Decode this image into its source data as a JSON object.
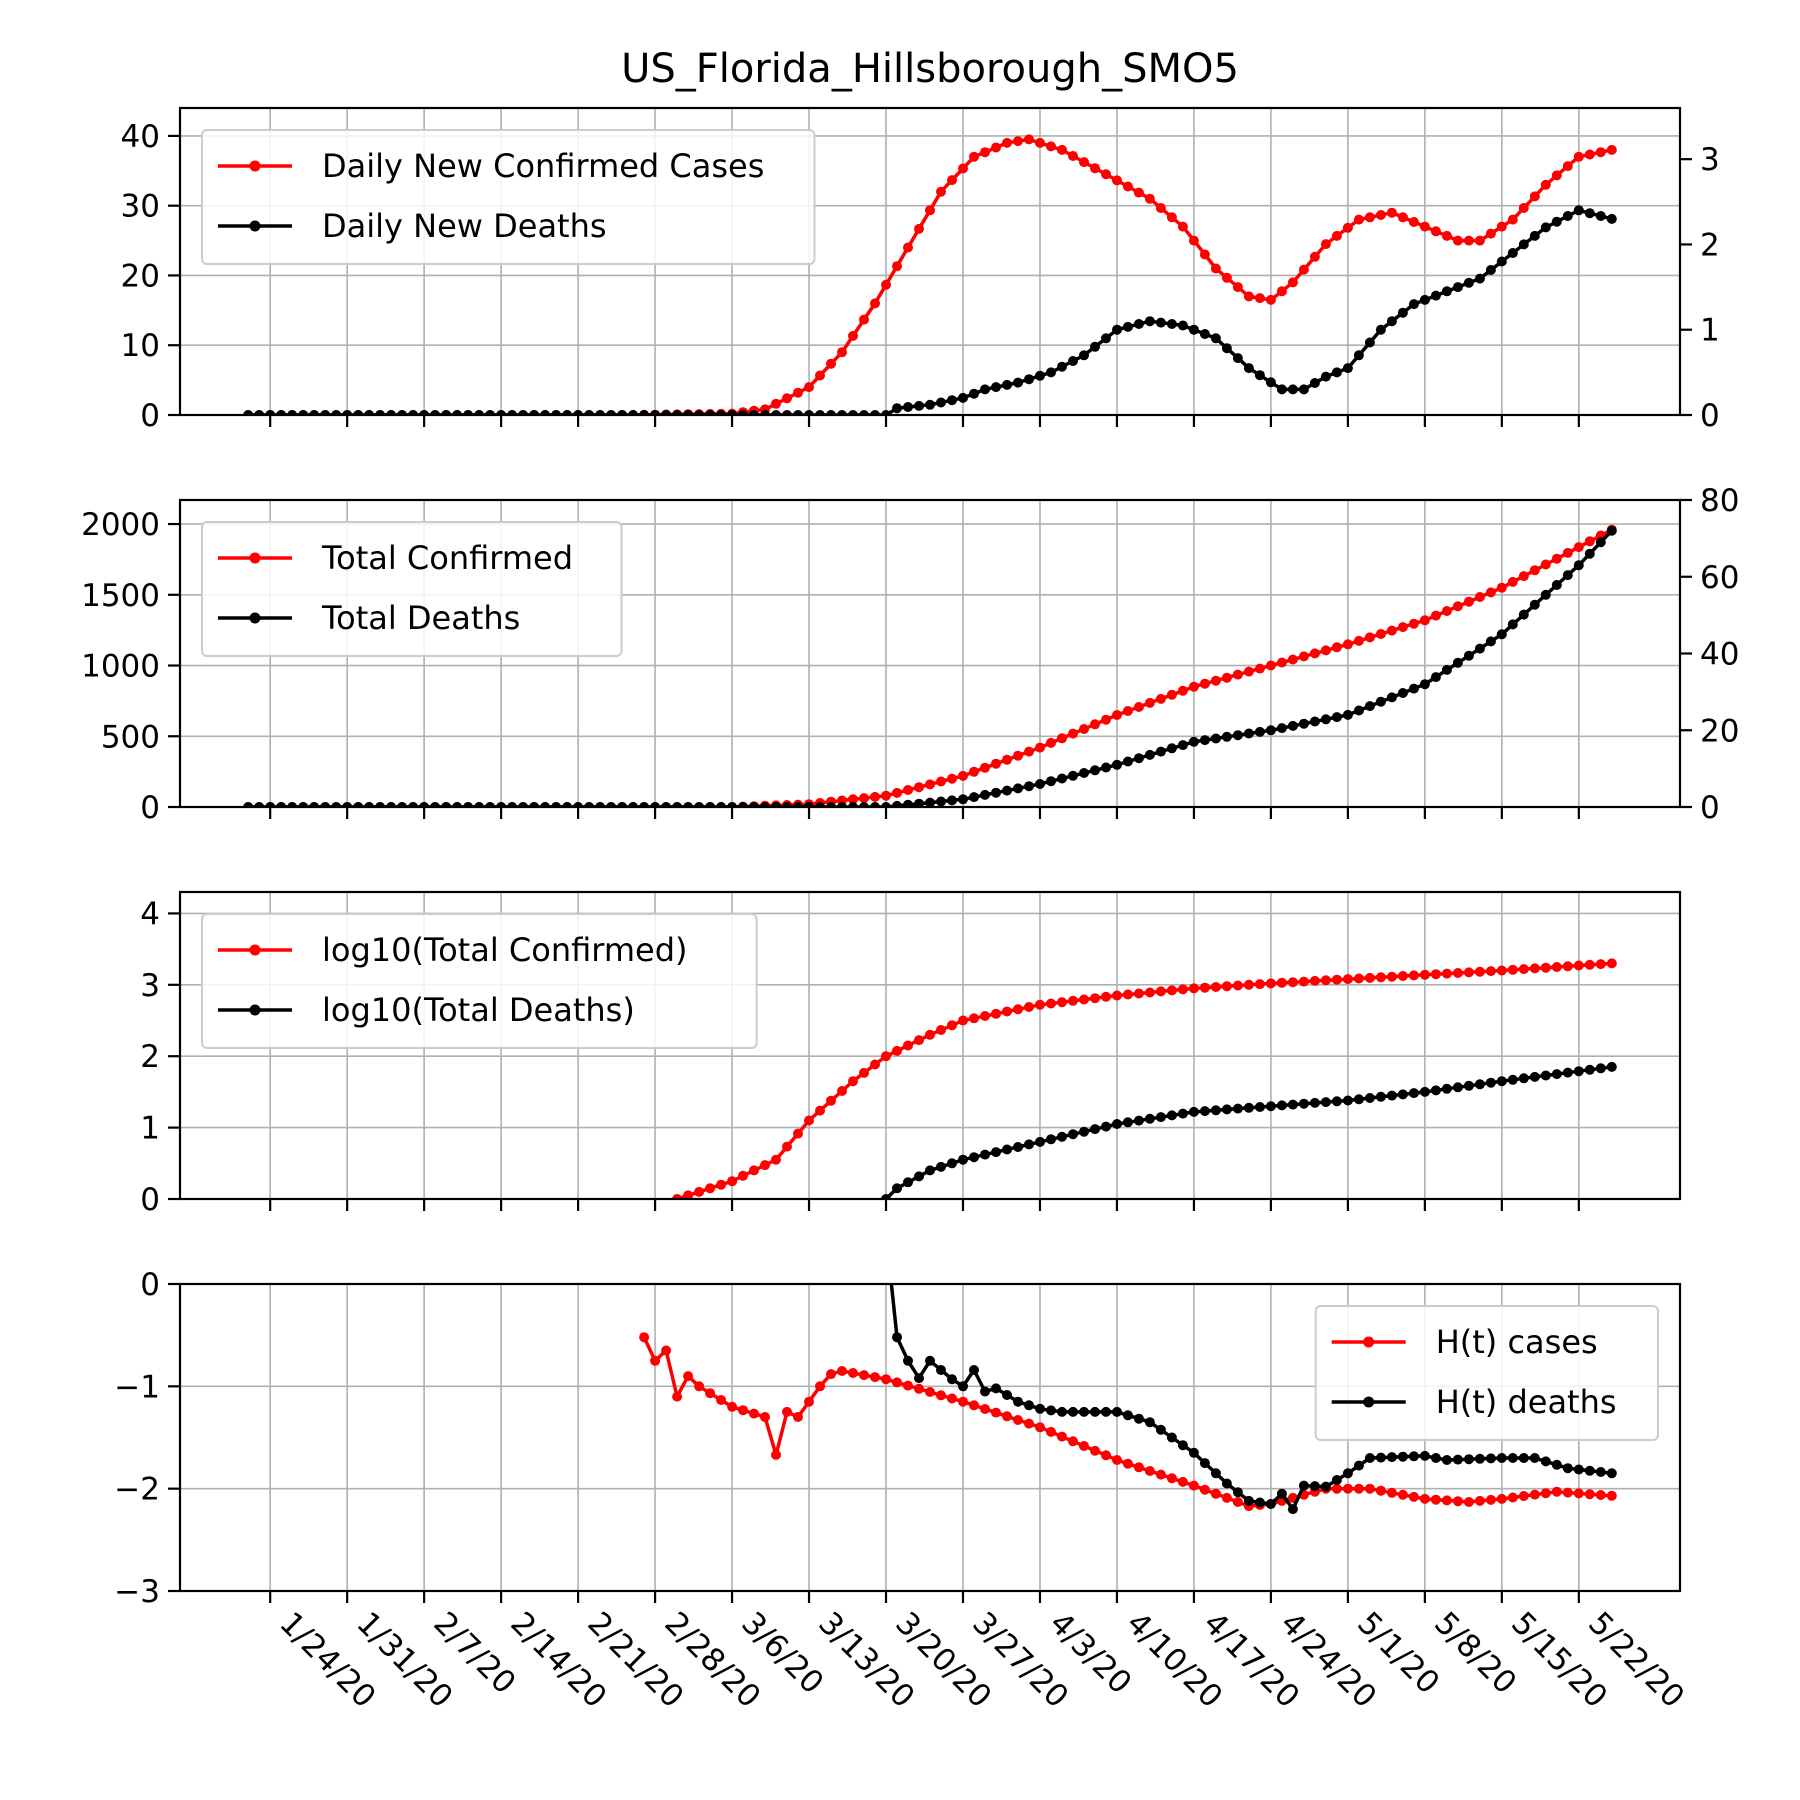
{
  "figure": {
    "title": "US_Florida_Hillsborough_SMO5"
  },
  "chart_data": [
    {
      "type": "line",
      "panel": "daily",
      "x_dates": [
        "1/24/20",
        "1/31/20",
        "2/7/20",
        "2/14/20",
        "2/21/20",
        "2/28/20",
        "3/6/20",
        "3/13/20",
        "3/20/20",
        "3/27/20",
        "4/3/20",
        "4/10/20",
        "4/17/20",
        "4/24/20",
        "5/1/20",
        "5/8/20",
        "5/15/20",
        "5/22/20"
      ],
      "x_first": "1/22/20",
      "x_last": "5/25/20",
      "ylim": [
        0,
        44
      ],
      "yticks": [
        "0",
        "10",
        "20",
        "30",
        "40"
      ],
      "ylim_right": [
        0,
        3.6
      ],
      "yticks_right": [
        "0",
        "1",
        "2",
        "3"
      ],
      "legend": "top-left",
      "series": [
        {
          "name": "Daily New Confirmed Cases",
          "color": "#ff0000",
          "axis": "left",
          "points": [
            [
              "1/22/20",
              0
            ],
            [
              "2/26/20",
              0
            ],
            [
              "3/6/20",
              0.2
            ],
            [
              "3/9/20",
              0.8
            ],
            [
              "3/13/20",
              4
            ],
            [
              "3/16/20",
              9
            ],
            [
              "3/19/20",
              16
            ],
            [
              "3/22/20",
              24
            ],
            [
              "3/25/20",
              32
            ],
            [
              "3/28/20",
              37
            ],
            [
              "3/31/20",
              39
            ],
            [
              "4/2/20",
              39.5
            ],
            [
              "4/5/20",
              38
            ],
            [
              "4/9/20",
              34.5
            ],
            [
              "4/13/20",
              31
            ],
            [
              "4/16/20",
              27
            ],
            [
              "4/19/20",
              21
            ],
            [
              "4/22/20",
              17
            ],
            [
              "4/24/20",
              16.5
            ],
            [
              "4/26/20",
              19
            ],
            [
              "4/29/20",
              24.5
            ],
            [
              "5/2/20",
              28
            ],
            [
              "5/5/20",
              29
            ],
            [
              "5/8/20",
              27
            ],
            [
              "5/11/20",
              25
            ],
            [
              "5/13/20",
              25
            ],
            [
              "5/16/20",
              28
            ],
            [
              "5/19/20",
              33
            ],
            [
              "5/22/20",
              37
            ],
            [
              "5/25/20",
              38
            ]
          ]
        },
        {
          "name": "Daily New Deaths",
          "color": "#000000",
          "axis": "right",
          "points": [
            [
              "1/22/20",
              0
            ],
            [
              "3/20/20",
              0
            ],
            [
              "3/21/20",
              0.08
            ],
            [
              "3/24/20",
              0.12
            ],
            [
              "3/27/20",
              0.2
            ],
            [
              "3/29/20",
              0.3
            ],
            [
              "4/1/20",
              0.38
            ],
            [
              "4/4/20",
              0.5
            ],
            [
              "4/7/20",
              0.7
            ],
            [
              "4/10/20",
              1.0
            ],
            [
              "4/13/20",
              1.1
            ],
            [
              "4/16/20",
              1.05
            ],
            [
              "4/19/20",
              0.9
            ],
            [
              "4/22/20",
              0.55
            ],
            [
              "4/25/20",
              0.3
            ],
            [
              "4/27/20",
              0.3
            ],
            [
              "4/29/20",
              0.45
            ],
            [
              "5/1/20",
              0.55
            ],
            [
              "5/4/20",
              1.0
            ],
            [
              "5/7/20",
              1.3
            ],
            [
              "5/10/20",
              1.45
            ],
            [
              "5/13/20",
              1.6
            ],
            [
              "5/16/20",
              1.9
            ],
            [
              "5/19/20",
              2.2
            ],
            [
              "5/22/20",
              2.4
            ],
            [
              "5/25/20",
              2.3
            ]
          ]
        }
      ]
    },
    {
      "type": "line",
      "panel": "total",
      "ylim": [
        0,
        2170
      ],
      "yticks": [
        "0",
        "500",
        "1000",
        "1500",
        "2000"
      ],
      "ylim_right": [
        0,
        80
      ],
      "yticks_right": [
        "0",
        "20",
        "40",
        "60",
        "80"
      ],
      "legend": "top-left",
      "series": [
        {
          "name": "Total Confirmed",
          "color": "#ff0000",
          "axis": "left",
          "points": [
            [
              "1/22/20",
              0
            ],
            [
              "3/6/20",
              0
            ],
            [
              "3/13/20",
              20
            ],
            [
              "3/20/20",
              80
            ],
            [
              "3/27/20",
              220
            ],
            [
              "4/3/20",
              420
            ],
            [
              "4/10/20",
              650
            ],
            [
              "4/17/20",
              850
            ],
            [
              "4/24/20",
              1000
            ],
            [
              "5/1/20",
              1150
            ],
            [
              "5/8/20",
              1320
            ],
            [
              "5/15/20",
              1550
            ],
            [
              "5/25/20",
              1960
            ]
          ]
        },
        {
          "name": "Total Deaths",
          "color": "#000000",
          "axis": "right",
          "points": [
            [
              "1/22/20",
              0
            ],
            [
              "3/20/20",
              0
            ],
            [
              "3/27/20",
              2
            ],
            [
              "4/3/20",
              6
            ],
            [
              "4/10/20",
              11
            ],
            [
              "4/17/20",
              17
            ],
            [
              "4/24/20",
              20
            ],
            [
              "5/1/20",
              24
            ],
            [
              "5/8/20",
              32
            ],
            [
              "5/15/20",
              45
            ],
            [
              "5/22/20",
              63
            ],
            [
              "5/25/20",
              72
            ]
          ]
        }
      ]
    },
    {
      "type": "line",
      "panel": "log",
      "ylim": [
        0,
        4.3
      ],
      "yticks": [
        "0",
        "1",
        "2",
        "3",
        "4"
      ],
      "legend": "top-left",
      "series": [
        {
          "name": "log10(Total Confirmed)",
          "color": "#ff0000",
          "axis": "left",
          "points": [
            [
              "3/1/20",
              0
            ],
            [
              "3/6/20",
              0.25
            ],
            [
              "3/10/20",
              0.55
            ],
            [
              "3/13/20",
              1.1
            ],
            [
              "3/17/20",
              1.65
            ],
            [
              "3/20/20",
              2.0
            ],
            [
              "3/24/20",
              2.3
            ],
            [
              "3/27/20",
              2.5
            ],
            [
              "4/3/20",
              2.72
            ],
            [
              "4/10/20",
              2.85
            ],
            [
              "4/17/20",
              2.95
            ],
            [
              "4/24/20",
              3.02
            ],
            [
              "5/1/20",
              3.08
            ],
            [
              "5/8/20",
              3.14
            ],
            [
              "5/15/20",
              3.2
            ],
            [
              "5/25/20",
              3.3
            ]
          ]
        },
        {
          "name": "log10(Total Deaths)",
          "color": "#000000",
          "axis": "left",
          "points": [
            [
              "3/20/20",
              0
            ],
            [
              "3/21/20",
              0.15
            ],
            [
              "3/24/20",
              0.4
            ],
            [
              "3/27/20",
              0.55
            ],
            [
              "4/3/20",
              0.8
            ],
            [
              "4/10/20",
              1.05
            ],
            [
              "4/17/20",
              1.22
            ],
            [
              "4/24/20",
              1.3
            ],
            [
              "5/1/20",
              1.38
            ],
            [
              "5/8/20",
              1.5
            ],
            [
              "5/15/20",
              1.65
            ],
            [
              "5/25/20",
              1.85
            ]
          ]
        }
      ]
    },
    {
      "type": "line",
      "panel": "hurst",
      "ylim": [
        -3,
        0
      ],
      "yticks": [
        "0",
        "−1",
        "−2",
        "−3"
      ],
      "legend": "top-right",
      "series": [
        {
          "name": "H(t) cases",
          "color": "#ff0000",
          "axis": "left",
          "points": [
            [
              "2/27/20",
              -0.52
            ],
            [
              "2/28/20",
              -0.75
            ],
            [
              "2/29/20",
              -0.65
            ],
            [
              "3/1/20",
              -1.1
            ],
            [
              "3/2/20",
              -0.9
            ],
            [
              "3/3/20",
              -1.0
            ],
            [
              "3/6/20",
              -1.2
            ],
            [
              "3/9/20",
              -1.3
            ],
            [
              "3/10/20",
              -1.67
            ],
            [
              "3/11/20",
              -1.25
            ],
            [
              "3/12/20",
              -1.3
            ],
            [
              "3/14/20",
              -1.0
            ],
            [
              "3/15/20",
              -0.88
            ],
            [
              "3/16/20",
              -0.85
            ],
            [
              "3/20/20",
              -0.93
            ],
            [
              "3/27/20",
              -1.15
            ],
            [
              "4/3/20",
              -1.4
            ],
            [
              "4/10/20",
              -1.72
            ],
            [
              "4/17/20",
              -1.97
            ],
            [
              "4/22/20",
              -2.17
            ],
            [
              "4/24/20",
              -2.15
            ],
            [
              "4/29/20",
              -2.0
            ],
            [
              "5/3/20",
              -2.0
            ],
            [
              "5/8/20",
              -2.1
            ],
            [
              "5/12/20",
              -2.13
            ],
            [
              "5/15/20",
              -2.1
            ],
            [
              "5/20/20",
              -2.03
            ],
            [
              "5/25/20",
              -2.07
            ]
          ]
        },
        {
          "name": "H(t) deaths",
          "color": "#000000",
          "axis": "left",
          "points": [
            [
              "3/20/20",
              0.5
            ],
            [
              "3/21/20",
              -0.52
            ],
            [
              "3/22/20",
              -0.75
            ],
            [
              "3/23/20",
              -0.92
            ],
            [
              "3/24/20",
              -0.75
            ],
            [
              "3/26/20",
              -0.93
            ],
            [
              "3/27/20",
              -1.0
            ],
            [
              "3/28/20",
              -0.84
            ],
            [
              "3/29/20",
              -1.05
            ],
            [
              "3/30/20",
              -1.02
            ],
            [
              "4/1/20",
              -1.15
            ],
            [
              "4/3/20",
              -1.22
            ],
            [
              "4/5/20",
              -1.25
            ],
            [
              "4/10/20",
              -1.25
            ],
            [
              "4/13/20",
              -1.35
            ],
            [
              "4/17/20",
              -1.65
            ],
            [
              "4/20/20",
              -1.95
            ],
            [
              "4/22/20",
              -2.12
            ],
            [
              "4/24/20",
              -2.15
            ],
            [
              "4/25/20",
              -2.05
            ],
            [
              "4/26/20",
              -2.2
            ],
            [
              "4/27/20",
              -1.97
            ],
            [
              "4/29/20",
              -1.98
            ],
            [
              "5/1/20",
              -1.85
            ],
            [
              "5/3/20",
              -1.7
            ],
            [
              "5/8/20",
              -1.68
            ],
            [
              "5/10/20",
              -1.72
            ],
            [
              "5/15/20",
              -1.7
            ],
            [
              "5/18/20",
              -1.7
            ],
            [
              "5/21/20",
              -1.8
            ],
            [
              "5/25/20",
              -1.85
            ]
          ]
        }
      ]
    }
  ]
}
